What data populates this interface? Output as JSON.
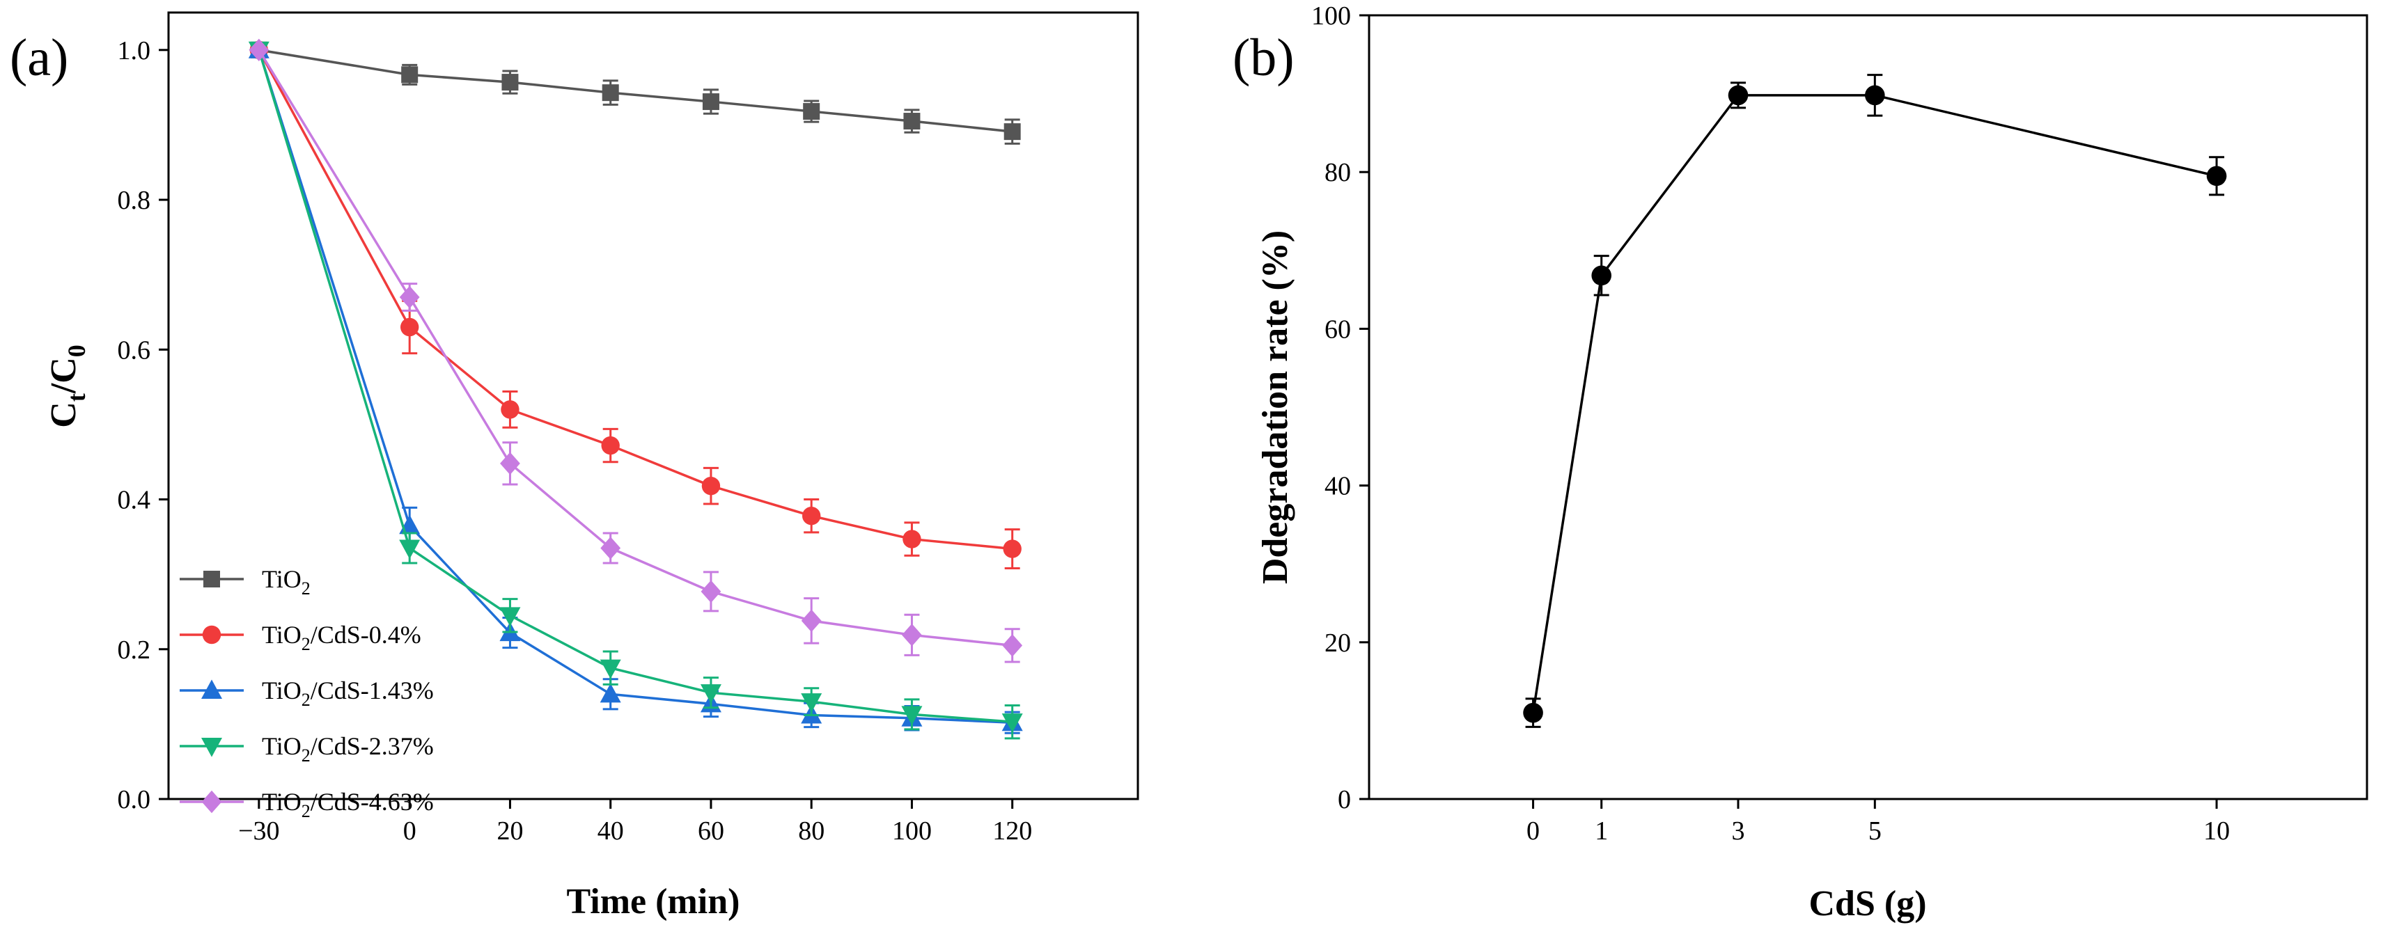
{
  "chart_data": [
    {
      "panel": "(a)",
      "type": "line",
      "xlabel": "Time (min)",
      "ylabel_main": "C",
      "ylabel_sub1": "t",
      "ylabel_slash": "/C",
      "ylabel_sub2": "0",
      "xlim": [
        -48,
        145
      ],
      "ylim": [
        0.0,
        1.05
      ],
      "x_ticks": [
        -30,
        0,
        20,
        40,
        60,
        80,
        100,
        120
      ],
      "x_tick_labels": [
        "−30",
        "0",
        "20",
        "40",
        "60",
        "80",
        "100",
        "120"
      ],
      "y_ticks": [
        0.0,
        0.2,
        0.4,
        0.6,
        0.8,
        1.0
      ],
      "y_tick_labels": [
        "0.0",
        "0.2",
        "0.4",
        "0.6",
        "0.8",
        "1.0"
      ],
      "legend_position": "bottom-left",
      "x": [
        -30,
        0,
        20,
        40,
        60,
        80,
        100,
        120
      ],
      "series": [
        {
          "name": "TiO2",
          "label_main": "TiO",
          "label_sub": "2",
          "label_tail": "",
          "color": "#555555",
          "marker": "square",
          "values": [
            1.0,
            0.967,
            0.957,
            0.943,
            0.931,
            0.918,
            0.905,
            0.891
          ],
          "errors": [
            0.0,
            0.013,
            0.015,
            0.016,
            0.016,
            0.014,
            0.015,
            0.016
          ]
        },
        {
          "name": "TiO2/CdS-0.4%",
          "label_main": "TiO",
          "label_sub": "2",
          "label_tail": "/CdS-0.4%",
          "color": "#f03b3b",
          "marker": "circle",
          "values": [
            1.0,
            0.63,
            0.52,
            0.472,
            0.418,
            0.378,
            0.347,
            0.334
          ],
          "errors": [
            0.0,
            0.035,
            0.024,
            0.022,
            0.024,
            0.022,
            0.022,
            0.026
          ]
        },
        {
          "name": "TiO2/CdS-1.43%",
          "label_main": "TiO",
          "label_sub": "2",
          "label_tail": "/CdS-1.43%",
          "color": "#1f6fd6",
          "marker": "triangle-up",
          "values": [
            1.0,
            0.365,
            0.222,
            0.14,
            0.127,
            0.112,
            0.108,
            0.102
          ],
          "errors": [
            0.0,
            0.024,
            0.02,
            0.02,
            0.017,
            0.016,
            0.016,
            0.014
          ]
        },
        {
          "name": "TiO2/CdS-2.37%",
          "label_main": "TiO",
          "label_sub": "2",
          "label_tail": "/CdS-2.37%",
          "color": "#16b37a",
          "marker": "triangle-down",
          "values": [
            1.0,
            0.335,
            0.245,
            0.175,
            0.142,
            0.13,
            0.113,
            0.103
          ],
          "errors": [
            0.0,
            0.02,
            0.022,
            0.022,
            0.02,
            0.018,
            0.02,
            0.022
          ]
        },
        {
          "name": "TiO2/CdS-4.63%",
          "label_main": "TiO",
          "label_sub": "2",
          "label_tail": "/CdS-4.63%",
          "color": "#c77be0",
          "marker": "diamond",
          "values": [
            1.0,
            0.67,
            0.448,
            0.335,
            0.277,
            0.238,
            0.219,
            0.205
          ],
          "errors": [
            0.0,
            0.018,
            0.028,
            0.02,
            0.026,
            0.03,
            0.027,
            0.022
          ]
        }
      ]
    },
    {
      "panel": "(b)",
      "type": "line",
      "xlabel": "CdS (g)",
      "ylabel": "Ddegradation rate (%)",
      "xlim": [
        -2.4,
        12.2
      ],
      "ylim": [
        0,
        100
      ],
      "x_ticks": [
        0,
        1,
        3,
        5,
        10
      ],
      "x_tick_labels": [
        "0",
        "1",
        "3",
        "5",
        "10"
      ],
      "y_ticks": [
        0,
        20,
        40,
        60,
        80,
        100
      ],
      "y_tick_labels": [
        "0",
        "20",
        "40",
        "60",
        "80",
        "100"
      ],
      "series": [
        {
          "name": "Ddegradation rate",
          "color": "#000000",
          "marker": "circle",
          "x": [
            0,
            1,
            3,
            5,
            10
          ],
          "values": [
            11,
            66.8,
            89.8,
            89.8,
            79.5
          ],
          "errors": [
            1.8,
            2.5,
            1.6,
            2.6,
            2.4
          ]
        }
      ]
    }
  ]
}
